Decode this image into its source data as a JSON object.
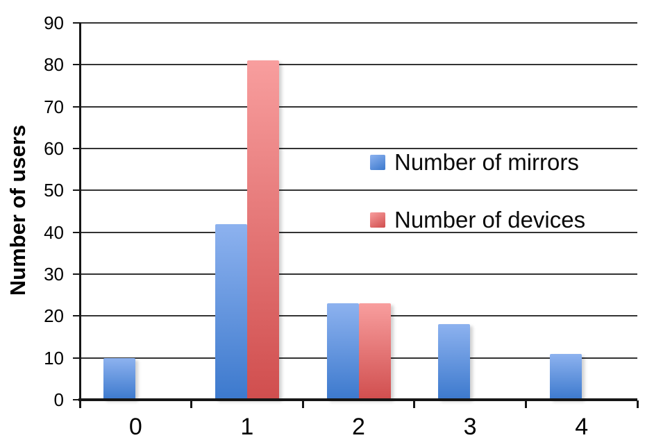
{
  "chart_data": {
    "type": "bar",
    "title": "",
    "categories": [
      "0",
      "1",
      "2",
      "3",
      "4"
    ],
    "series": [
      {
        "name": "Number of mirrors",
        "values": [
          10,
          42,
          23,
          18,
          11
        ],
        "color_top": "#8DB2EF",
        "color_bottom": "#3C79CD"
      },
      {
        "name": "Number of devices",
        "values": [
          0,
          81,
          23,
          0,
          0
        ],
        "color_top": "#F89E9E",
        "color_bottom": "#D04E4E"
      }
    ],
    "xlabel": "",
    "ylabel": "Number of users",
    "ylim": [
      0,
      90
    ],
    "yticks": [
      0,
      10,
      20,
      30,
      40,
      50,
      60,
      70,
      80,
      90
    ],
    "grid": true,
    "legend_position": "center-right"
  },
  "colors": {
    "gridline": "#333333",
    "axis": "#161616",
    "text": "#000000",
    "background": "#ffffff"
  }
}
